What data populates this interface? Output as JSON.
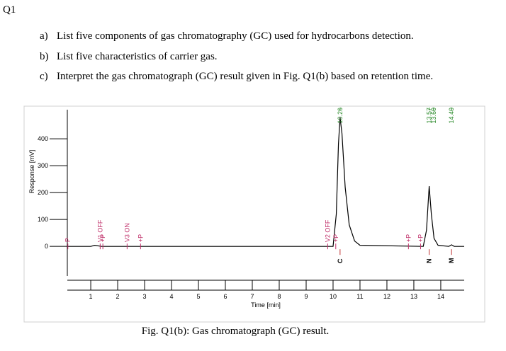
{
  "heading": "Q1",
  "questions": [
    {
      "marker": "a)",
      "text": "List five components of gas chromatography (GC) used for hydrocarbons detection."
    },
    {
      "marker": "b)",
      "text": "List five characteristics of carrier gas."
    },
    {
      "marker": "c)",
      "text": "Interpret the gas chromatograph (GC) result given in Fig. Q1(b) based on retention time."
    }
  ],
  "caption": "Fig. Q1(b): Gas chromatograph (GC) result.",
  "chart_data": {
    "type": "line",
    "xlabel": "Time [min]",
    "ylabel": "Response [mV]",
    "x": [
      0.13,
      1.0,
      1.15,
      1.4,
      5.0,
      10.0,
      10.12,
      10.2,
      10.26,
      10.33,
      10.45,
      10.6,
      10.8,
      11.0,
      13.35,
      13.47,
      13.57,
      13.65,
      13.75,
      13.9,
      14.3,
      14.4,
      14.5,
      14.87
    ],
    "values": [
      0,
      0,
      4,
      0,
      0,
      0,
      120,
      380,
      479,
      420,
      220,
      80,
      20,
      4,
      0,
      60,
      224,
      120,
      30,
      4,
      0,
      6,
      0,
      0
    ],
    "color": "#000000",
    "xlim": [
      0.13,
      14.87
    ],
    "ylim": [
      -110,
      508
    ],
    "xticks": [
      1,
      2,
      3,
      4,
      5,
      6,
      7,
      8,
      9,
      10,
      11,
      12,
      13,
      14
    ],
    "yticks": [
      0,
      100,
      200,
      300,
      400
    ],
    "peak_labels": [
      10.26,
      13.57,
      {
        "value": 13.6,
        "label": "13.60"
      },
      14.4
    ],
    "peak_label_texts": [
      "10.26",
      "13.57",
      "13.60",
      "14.40"
    ],
    "events": [
      {
        "time": 0.15,
        "label": "P"
      },
      {
        "time": 1.35,
        "label": "V1 OFF"
      },
      {
        "time": 1.45,
        "label": "+P"
      },
      {
        "time": 2.35,
        "label": "V3 ON"
      },
      {
        "time": 2.85,
        "label": "+P"
      },
      {
        "time": 9.8,
        "label": "V2 OFF"
      },
      {
        "time": 10.1,
        "label": "+P"
      },
      {
        "time": 12.8,
        "label": "+P"
      },
      {
        "time": 13.25,
        "label": "+P"
      }
    ],
    "components": [
      {
        "time": 10.26,
        "label": "C"
      },
      {
        "time": 13.57,
        "label": "N"
      },
      {
        "time": 14.4,
        "label": "M"
      }
    ]
  }
}
